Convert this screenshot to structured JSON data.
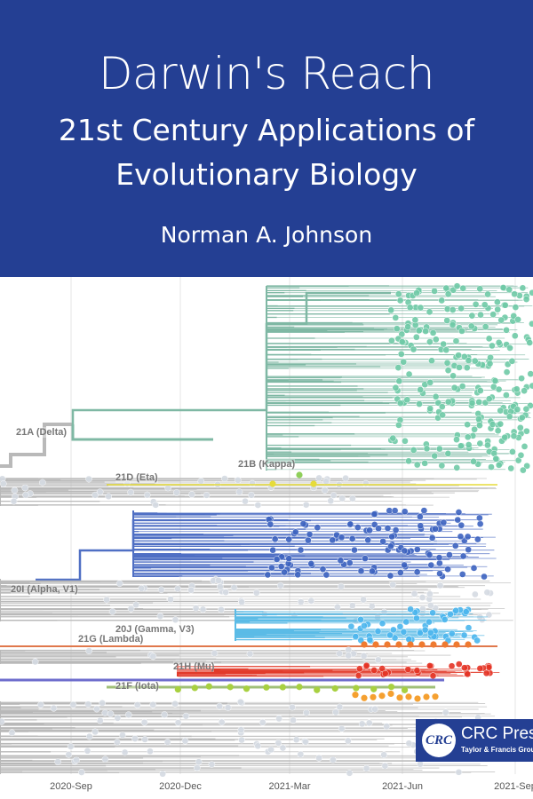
{
  "cover": {
    "title": "Darwin's Reach",
    "subtitle_line1": "21st Century Applications of",
    "subtitle_line2": "Evolutionary Biology",
    "author": "Norman A. Johnson",
    "background_color": "#243f93"
  },
  "tree": {
    "clades": [
      {
        "label": "21A (Delta)",
        "color": "#7fb8a4"
      },
      {
        "label": "21B (Kappa)",
        "color": "#8fcf5a"
      },
      {
        "label": "21D (Eta)",
        "color": "#e6dc3a"
      },
      {
        "label": "20I (Alpha, V1)",
        "color": "#4f6fc4"
      },
      {
        "label": "20J (Gamma, V3)",
        "color": "#5bbbe6"
      },
      {
        "label": "21G (Lambda)",
        "color": "#e0784c"
      },
      {
        "label": "21H (Mu)",
        "color": "#e23a2a"
      },
      {
        "label": "21F (Iota)",
        "color": "#a8d040"
      }
    ],
    "axis_ticks": [
      "2020-Sep",
      "2020-Dec",
      "2021-Mar",
      "2021-Jun",
      "2021-Sep"
    ]
  },
  "publisher": {
    "logo_mark": "CRC",
    "name": "CRC Press",
    "subtitle": "Taylor & Francis Group"
  }
}
